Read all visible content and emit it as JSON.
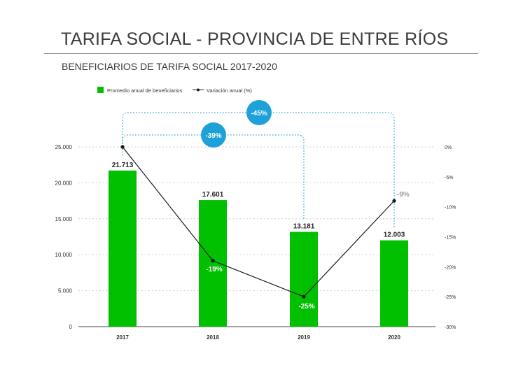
{
  "title": "TARIFA SOCIAL - PROVINCIA DE ENTRE RÍOS",
  "subtitle": "BENEFICIARIOS DE TARIFA SOCIAL 2017-2020",
  "colors": {
    "bar": "#00c000",
    "line": "#1a1a1a",
    "bubble": "#1ea1d8",
    "bracket": "#1ea1d8",
    "text": "#333333"
  },
  "chart_data": {
    "type": "bar",
    "categories": [
      "2017",
      "2018",
      "2019",
      "2020"
    ],
    "series": [
      {
        "name": "Promedio anual de beneficiarios",
        "type": "bar",
        "values": [
          21713,
          17601,
          13181,
          12003
        ],
        "labels": [
          "21.713",
          "17.601",
          "13.181",
          "12.003"
        ]
      },
      {
        "name": "Variación anual (%)",
        "type": "line",
        "axis": "right",
        "values": [
          0,
          -19,
          -25,
          -9
        ],
        "labels": [
          "",
          "-19%",
          "-25%",
          "-9%"
        ]
      }
    ],
    "y_left": {
      "ylim": [
        0,
        25000
      ],
      "ticks": [
        0,
        5000,
        10000,
        15000,
        20000,
        25000
      ],
      "tick_labels": [
        "0",
        "5.000",
        "10.000",
        "15.000",
        "20.000",
        "25.000"
      ]
    },
    "y_right": {
      "ylim": [
        -30,
        0
      ],
      "ticks": [
        0,
        -5,
        -10,
        -15,
        -20,
        -25,
        -30
      ],
      "tick_labels": [
        "0%",
        "-5%",
        "-10%",
        "-15%",
        "-20%",
        "-25%",
        "-30%"
      ]
    },
    "legend_position": "top-left",
    "annotations": [
      {
        "label": "-39%",
        "from": "2017",
        "to": "2019"
      },
      {
        "label": "-45%",
        "from": "2017",
        "to": "2020"
      }
    ]
  }
}
